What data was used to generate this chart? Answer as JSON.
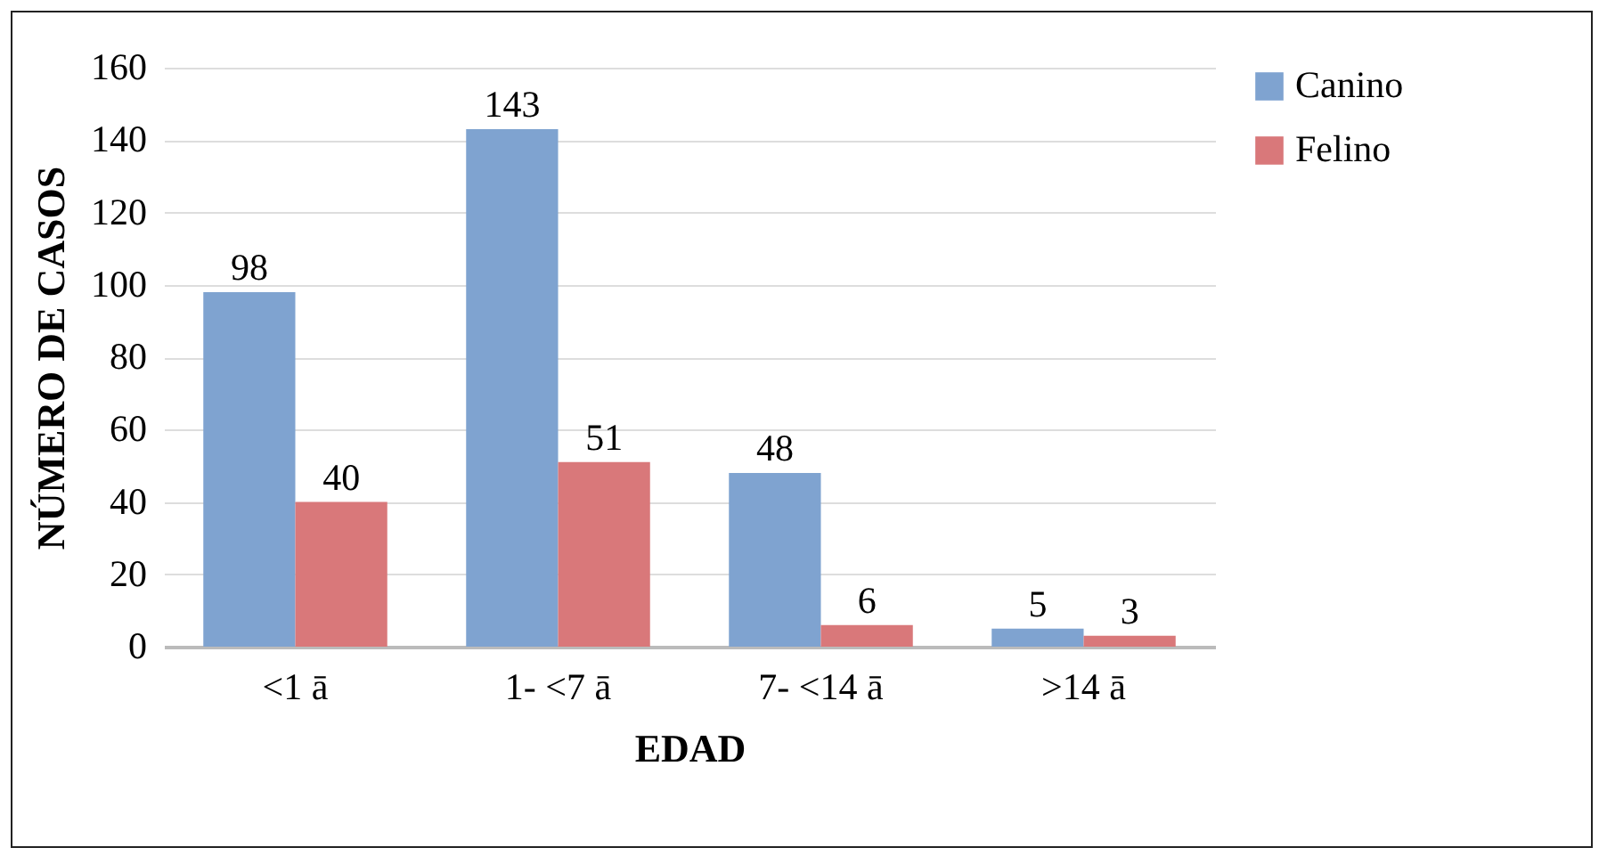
{
  "chart_data": {
    "type": "bar",
    "xlabel": "EDAD",
    "ylabel": "NÚMERO DE CASOS",
    "categories": [
      "<1 ā",
      "1- <7 ā",
      "7- <14 ā",
      ">14 ā"
    ],
    "series": [
      {
        "name": "Canino",
        "color": "#7fa3d0",
        "values": [
          98,
          143,
          48,
          5
        ]
      },
      {
        "name": "Felino",
        "color": "#d9787a",
        "values": [
          40,
          51,
          6,
          3
        ]
      }
    ],
    "ylim": [
      0,
      160
    ],
    "yticks": [
      0,
      20,
      40,
      60,
      80,
      100,
      120,
      140,
      160
    ],
    "grid": "y",
    "legend": "right",
    "data_labels": true
  }
}
